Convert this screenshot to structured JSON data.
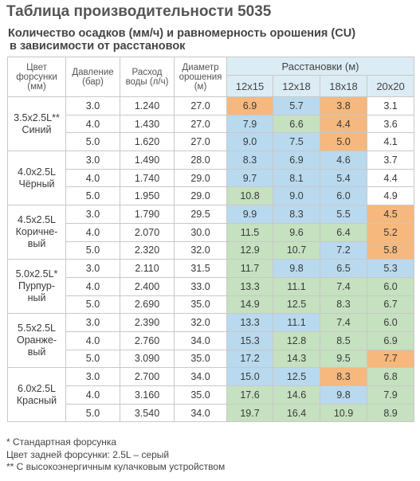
{
  "title": "Таблица производительности 5035",
  "subtitle_line1": "Количество осадков (мм/ч) и равномерность орошения (CU)",
  "subtitle_line2": "в зависимости от расстановок",
  "headers": {
    "nozzle_color": "Цвет форсунки (мм)",
    "pressure": "Давление (бар)",
    "flow": "Расход воды (л/ч)",
    "diameter": "Диаметр орошения (м)",
    "spacings": "Расстановки (м)",
    "spacing_cols": [
      "12x15",
      "12x18",
      "18x18",
      "20x20"
    ]
  },
  "groups": [
    {
      "nozzle_line1": "3.5x2.5L**",
      "nozzle_line2": "Синий",
      "nozzle_line3": "",
      "rows": [
        {
          "pressure": "3.0",
          "flow": "1.240",
          "diameter": "27.0",
          "values": [
            "6.9",
            "5.7",
            "3.8",
            "3.1"
          ],
          "colors": [
            "orange",
            "blue",
            "orange",
            "none"
          ]
        },
        {
          "pressure": "4.0",
          "flow": "1.430",
          "diameter": "27.0",
          "values": [
            "7.9",
            "6.6",
            "4.4",
            "3.6"
          ],
          "colors": [
            "blue",
            "green",
            "orange",
            "none"
          ]
        },
        {
          "pressure": "5.0",
          "flow": "1.620",
          "diameter": "27.0",
          "values": [
            "9.0",
            "7.5",
            "5.0",
            "4.1"
          ],
          "colors": [
            "blue",
            "blue",
            "orange",
            "none"
          ]
        }
      ]
    },
    {
      "nozzle_line1": "4.0x2.5L",
      "nozzle_line2": "Чёрный",
      "nozzle_line3": "",
      "rows": [
        {
          "pressure": "3.0",
          "flow": "1.490",
          "diameter": "28.0",
          "values": [
            "8.3",
            "6.9",
            "4.6",
            "3.7"
          ],
          "colors": [
            "blue",
            "blue",
            "blue",
            "none"
          ]
        },
        {
          "pressure": "4.0",
          "flow": "1.740",
          "diameter": "29.0",
          "values": [
            "9.7",
            "8.1",
            "5.4",
            "4.4"
          ],
          "colors": [
            "blue",
            "blue",
            "blue",
            "none"
          ]
        },
        {
          "pressure": "5.0",
          "flow": "1.950",
          "diameter": "29.0",
          "values": [
            "10.8",
            "9.0",
            "6.0",
            "4.9"
          ],
          "colors": [
            "green",
            "blue",
            "blue",
            "none"
          ]
        }
      ]
    },
    {
      "nozzle_line1": "4.5x2.5L",
      "nozzle_line2": "Коричне-",
      "nozzle_line3": "вый",
      "rows": [
        {
          "pressure": "3.0",
          "flow": "1.790",
          "diameter": "29.5",
          "values": [
            "9.9",
            "8.3",
            "5.5",
            "4.5"
          ],
          "colors": [
            "blue",
            "blue",
            "blue",
            "orange"
          ]
        },
        {
          "pressure": "4.0",
          "flow": "2.070",
          "diameter": "30.0",
          "values": [
            "11.5",
            "9.6",
            "6.4",
            "5.2"
          ],
          "colors": [
            "green",
            "green",
            "green",
            "orange"
          ]
        },
        {
          "pressure": "5.0",
          "flow": "2.320",
          "diameter": "32.0",
          "values": [
            "12.9",
            "10.7",
            "7.2",
            "5.8"
          ],
          "colors": [
            "green",
            "green",
            "blue",
            "orange"
          ]
        }
      ]
    },
    {
      "nozzle_line1": "5.0x2.5L*",
      "nozzle_line2": "Пурпур-",
      "nozzle_line3": "ный",
      "rows": [
        {
          "pressure": "3.0",
          "flow": "2.110",
          "diameter": "31.5",
          "values": [
            "11.7",
            "9.8",
            "6.5",
            "5.3"
          ],
          "colors": [
            "green",
            "blue",
            "blue",
            "blue"
          ]
        },
        {
          "pressure": "4.0",
          "flow": "2.400",
          "diameter": "33.0",
          "values": [
            "13.3",
            "11.1",
            "7.4",
            "6.0"
          ],
          "colors": [
            "green",
            "green",
            "green",
            "green"
          ]
        },
        {
          "pressure": "5.0",
          "flow": "2.690",
          "diameter": "35.0",
          "values": [
            "14.9",
            "12.5",
            "8.3",
            "6.7"
          ],
          "colors": [
            "green",
            "green",
            "green",
            "green"
          ]
        }
      ]
    },
    {
      "nozzle_line1": "5.5x2.5L",
      "nozzle_line2": "Оранже-",
      "nozzle_line3": "вый",
      "rows": [
        {
          "pressure": "3.0",
          "flow": "2.390",
          "diameter": "32.0",
          "values": [
            "13.3",
            "11.1",
            "7.4",
            "6.0"
          ],
          "colors": [
            "blue",
            "blue",
            "green",
            "green"
          ]
        },
        {
          "pressure": "4.0",
          "flow": "2.760",
          "diameter": "34.0",
          "values": [
            "15.3",
            "12.8",
            "8.5",
            "6.9"
          ],
          "colors": [
            "blue",
            "green",
            "green",
            "green"
          ]
        },
        {
          "pressure": "5.0",
          "flow": "3.090",
          "diameter": "35.0",
          "values": [
            "17.2",
            "14.3",
            "9.5",
            "7.7"
          ],
          "colors": [
            "blue",
            "green",
            "green",
            "orange"
          ]
        }
      ]
    },
    {
      "nozzle_line1": "6.0x2.5L",
      "nozzle_line2": "Красный",
      "nozzle_line3": "",
      "rows": [
        {
          "pressure": "3.0",
          "flow": "2.700",
          "diameter": "34.0",
          "values": [
            "15.0",
            "12.5",
            "8.3",
            "6.8"
          ],
          "colors": [
            "blue",
            "blue",
            "orange",
            "green"
          ]
        },
        {
          "pressure": "4.0",
          "flow": "3.160",
          "diameter": "35.0",
          "values": [
            "17.6",
            "14.6",
            "9.8",
            "7.9"
          ],
          "colors": [
            "green",
            "green",
            "blue",
            "green"
          ]
        },
        {
          "pressure": "5.0",
          "flow": "3.540",
          "diameter": "34.0",
          "values": [
            "19.7",
            "16.4",
            "10.9",
            "8.9"
          ],
          "colors": [
            "green",
            "green",
            "green",
            "green"
          ]
        }
      ]
    }
  ],
  "footnotes": [
    "* Стандартная форсунка",
    "Цвет задней форсунки: 2.5L – серый",
    "** С высокоэнергичным кулачковым устройством"
  ],
  "colors": {
    "orange": "#f6b87d",
    "blue": "#b9d9ee",
    "green": "#c5e1bf"
  }
}
